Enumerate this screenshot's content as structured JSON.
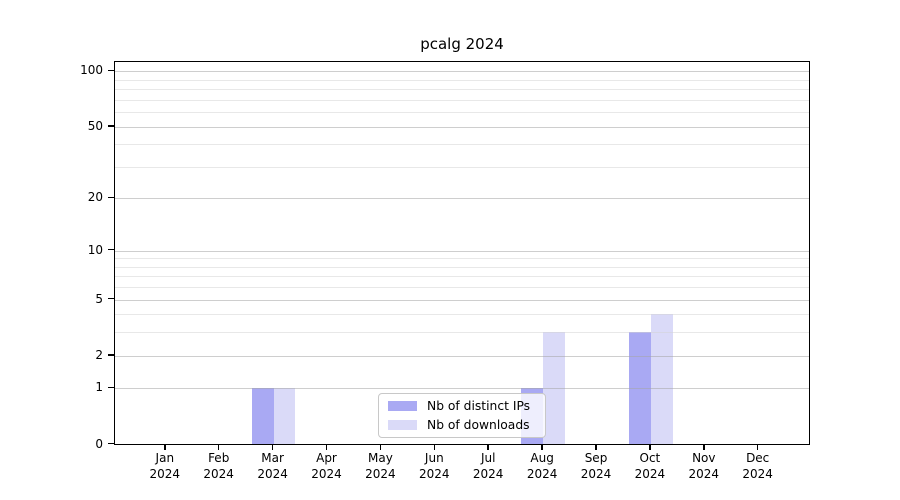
{
  "chart_data": {
    "type": "bar",
    "title": "pcalg 2024",
    "categories": [
      "Jan",
      "Feb",
      "Mar",
      "Apr",
      "May",
      "Jun",
      "Jul",
      "Aug",
      "Sep",
      "Oct",
      "Nov",
      "Dec"
    ],
    "x_year_label": "2024",
    "series": [
      {
        "name": "Nb of distinct IPs",
        "color": "#a9a9f3",
        "values": [
          0,
          0,
          1,
          0,
          0,
          0,
          0,
          1,
          0,
          3,
          0,
          0
        ]
      },
      {
        "name": "Nb of downloads",
        "color": "#dadaf8",
        "values": [
          0,
          0,
          1,
          0,
          0,
          0,
          0,
          3,
          0,
          4,
          0,
          0
        ]
      }
    ],
    "y_axis": {
      "scale": "log10(1+x)",
      "tick_values": [
        0,
        1,
        2,
        5,
        10,
        20,
        50,
        100
      ],
      "minor_gridline_values": [
        3,
        4,
        6,
        7,
        8,
        9,
        30,
        40,
        60,
        70,
        80,
        90
      ],
      "ylim": [
        0,
        112
      ]
    },
    "legend_position": "inside-bottom-center",
    "grid": true,
    "colors": {
      "spine": "#000000",
      "major_grid": "#cccccc",
      "minor_grid": "#ececec",
      "legend_border": "#c8c8c8"
    }
  }
}
